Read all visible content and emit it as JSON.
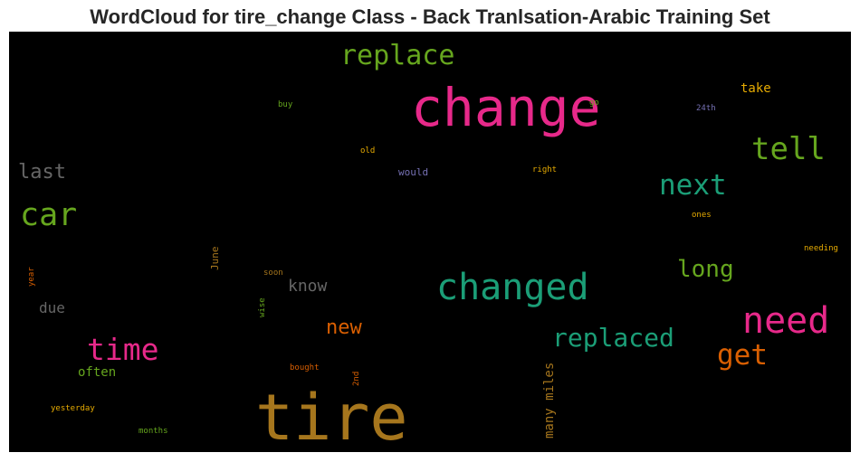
{
  "title": "WordCloud for tire_change Class - Back Tranlsation-Arabic Training Set",
  "colors": {
    "pink": "#e7298a",
    "green": "#66a61e",
    "teal": "#1b9e77",
    "orange": "#d95f02",
    "gold": "#a6761d",
    "yellow": "#e6ab02",
    "grey": "#666666",
    "purple": "#7570b3"
  },
  "words": {
    "change": "change",
    "tire": "tire",
    "changed": "changed",
    "need": "need",
    "replace": "replace",
    "tell": "tell",
    "next": "next",
    "car": "car",
    "last": "last",
    "time": "time",
    "replaced": "replaced",
    "long": "long",
    "get": "get",
    "new": "new",
    "know": "know",
    "due": "due",
    "often": "often",
    "take": "take",
    "buy": "buy",
    "go": "go",
    "24th": "24th",
    "old": "old",
    "would": "would",
    "right": "right",
    "ones": "ones",
    "needing": "needing",
    "June": "June",
    "soon": "soon",
    "year": "year",
    "wise": "wise",
    "bought": "bought",
    "2nd": "2nd",
    "many_miles": "many miles",
    "yesterday": "yesterday",
    "months": "months"
  }
}
